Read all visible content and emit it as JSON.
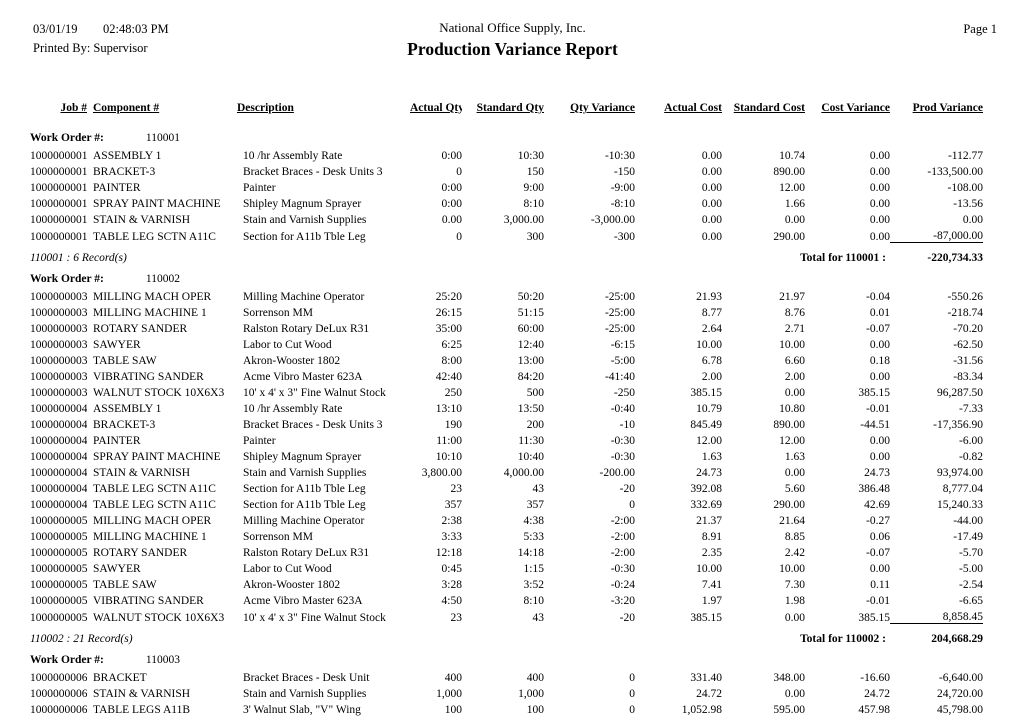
{
  "header": {
    "date": "03/01/19",
    "time": "02:48:03 PM",
    "printed_by_label": "Printed By:",
    "printed_by": "Supervisor",
    "company": "National Office Supply, Inc.",
    "title": "Production Variance Report",
    "page": "Page 1"
  },
  "work_order_label": "Work Order #:",
  "columns": [
    "Job #",
    "Component #",
    "Description",
    "Actual Qty",
    "Standard Qty",
    "Qty Variance",
    "Actual Cost",
    "Standard Cost",
    "Cost Variance",
    "Prod Variance"
  ],
  "sections": [
    {
      "work_order": "110001",
      "rows": [
        [
          "1000000001",
          "ASSEMBLY 1",
          "10 /hr Assembly Rate",
          "0:00",
          "10:30",
          "-10:30",
          "0.00",
          "10.74",
          "0.00",
          "-112.77"
        ],
        [
          "1000000001",
          "BRACKET-3",
          "Bracket Braces - Desk Units 3",
          "0",
          "150",
          "-150",
          "0.00",
          "890.00",
          "0.00",
          "-133,500.00"
        ],
        [
          "1000000001",
          "PAINTER",
          "Painter",
          "0:00",
          "9:00",
          "-9:00",
          "0.00",
          "12.00",
          "0.00",
          "-108.00"
        ],
        [
          "1000000001",
          "SPRAY PAINT MACHINE",
          "Shipley Magnum Sprayer",
          "0:00",
          "8:10",
          "-8:10",
          "0.00",
          "1.66",
          "0.00",
          "-13.56"
        ],
        [
          "1000000001",
          "STAIN & VARNISH",
          "Stain and Varnish Supplies",
          "0.00",
          "3,000.00",
          "-3,000.00",
          "0.00",
          "0.00",
          "0.00",
          "0.00"
        ],
        [
          "1000000001",
          "TABLE LEG SCTN A11C",
          "Section for A11b Tble Leg",
          "0",
          "300",
          "-300",
          "0.00",
          "290.00",
          "0.00",
          "-87,000.00"
        ]
      ],
      "records_note": "110001 : 6 Record(s)",
      "total_label": "Total for 110001 :",
      "total_value": "-220,734.33"
    },
    {
      "work_order": "110002",
      "rows": [
        [
          "1000000003",
          "MILLING MACH OPER",
          "Milling Machine Operator",
          "25:20",
          "50:20",
          "-25:00",
          "21.93",
          "21.97",
          "-0.04",
          "-550.26"
        ],
        [
          "1000000003",
          "MILLING MACHINE 1",
          "Sorrenson MM",
          "26:15",
          "51:15",
          "-25:00",
          "8.77",
          "8.76",
          "0.01",
          "-218.74"
        ],
        [
          "1000000003",
          "ROTARY SANDER",
          "Ralston Rotary DeLux R31",
          "35:00",
          "60:00",
          "-25:00",
          "2.64",
          "2.71",
          "-0.07",
          "-70.20"
        ],
        [
          "1000000003",
          "SAWYER",
          "Labor to Cut Wood",
          "6:25",
          "12:40",
          "-6:15",
          "10.00",
          "10.00",
          "0.00",
          "-62.50"
        ],
        [
          "1000000003",
          "TABLE SAW",
          "Akron-Wooster 1802",
          "8:00",
          "13:00",
          "-5:00",
          "6.78",
          "6.60",
          "0.18",
          "-31.56"
        ],
        [
          "1000000003",
          "VIBRATING SANDER",
          "Acme Vibro Master 623A",
          "42:40",
          "84:20",
          "-41:40",
          "2.00",
          "2.00",
          "0.00",
          "-83.34"
        ],
        [
          "1000000003",
          "WALNUT STOCK 10X6X3",
          "10' x 4' x 3\" Fine Walnut Stock",
          "250",
          "500",
          "-250",
          "385.15",
          "0.00",
          "385.15",
          "96,287.50"
        ],
        [
          "1000000004",
          "ASSEMBLY 1",
          "10 /hr Assembly Rate",
          "13:10",
          "13:50",
          "-0:40",
          "10.79",
          "10.80",
          "-0.01",
          "-7.33"
        ],
        [
          "1000000004",
          "BRACKET-3",
          "Bracket Braces - Desk Units 3",
          "190",
          "200",
          "-10",
          "845.49",
          "890.00",
          "-44.51",
          "-17,356.90"
        ],
        [
          "1000000004",
          "PAINTER",
          "Painter",
          "11:00",
          "11:30",
          "-0:30",
          "12.00",
          "12.00",
          "0.00",
          "-6.00"
        ],
        [
          "1000000004",
          "SPRAY PAINT MACHINE",
          "Shipley Magnum Sprayer",
          "10:10",
          "10:40",
          "-0:30",
          "1.63",
          "1.63",
          "0.00",
          "-0.82"
        ],
        [
          "1000000004",
          "STAIN & VARNISH",
          "Stain and Varnish Supplies",
          "3,800.00",
          "4,000.00",
          "-200.00",
          "24.73",
          "0.00",
          "24.73",
          "93,974.00"
        ],
        [
          "1000000004",
          "TABLE LEG SCTN A11C",
          "Section for A11b Tble Leg",
          "23",
          "43",
          "-20",
          "392.08",
          "5.60",
          "386.48",
          "8,777.04"
        ],
        [
          "1000000004",
          "TABLE LEG SCTN A11C",
          "Section for A11b Tble Leg",
          "357",
          "357",
          "0",
          "332.69",
          "290.00",
          "42.69",
          "15,240.33"
        ],
        [
          "1000000005",
          "MILLING MACH OPER",
          "Milling Machine Operator",
          "2:38",
          "4:38",
          "-2:00",
          "21.37",
          "21.64",
          "-0.27",
          "-44.00"
        ],
        [
          "1000000005",
          "MILLING MACHINE 1",
          "Sorrenson MM",
          "3:33",
          "5:33",
          "-2:00",
          "8.91",
          "8.85",
          "0.06",
          "-17.49"
        ],
        [
          "1000000005",
          "ROTARY SANDER",
          "Ralston Rotary DeLux R31",
          "12:18",
          "14:18",
          "-2:00",
          "2.35",
          "2.42",
          "-0.07",
          "-5.70"
        ],
        [
          "1000000005",
          "SAWYER",
          "Labor to Cut Wood",
          "0:45",
          "1:15",
          "-0:30",
          "10.00",
          "10.00",
          "0.00",
          "-5.00"
        ],
        [
          "1000000005",
          "TABLE SAW",
          "Akron-Wooster 1802",
          "3:28",
          "3:52",
          "-0:24",
          "7.41",
          "7.30",
          "0.11",
          "-2.54"
        ],
        [
          "1000000005",
          "VIBRATING SANDER",
          "Acme Vibro Master 623A",
          "4:50",
          "8:10",
          "-3:20",
          "1.97",
          "1.98",
          "-0.01",
          "-6.65"
        ],
        [
          "1000000005",
          "WALNUT STOCK 10X6X3",
          "10' x 4' x 3\" Fine Walnut Stock",
          "23",
          "43",
          "-20",
          "385.15",
          "0.00",
          "385.15",
          "8,858.45"
        ]
      ],
      "records_note": "110002 : 21 Record(s)",
      "total_label": "Total for 110002 :",
      "total_value": "204,668.29"
    },
    {
      "work_order": "110003",
      "rows": [
        [
          "1000000006",
          "BRACKET",
          "Bracket Braces - Desk Unit",
          "400",
          "400",
          "0",
          "331.40",
          "348.00",
          "-16.60",
          "-6,640.00"
        ],
        [
          "1000000006",
          "STAIN & VARNISH",
          "Stain and Varnish Supplies",
          "1,000",
          "1,000",
          "0",
          "24.72",
          "0.00",
          "24.72",
          "24,720.00"
        ],
        [
          "1000000006",
          "TABLE LEGS A11B",
          "3' Walnut Slab, \"V\" Wing",
          "100",
          "100",
          "0",
          "1,052.98",
          "595.00",
          "457.98",
          "45,798.00"
        ]
      ]
    }
  ]
}
